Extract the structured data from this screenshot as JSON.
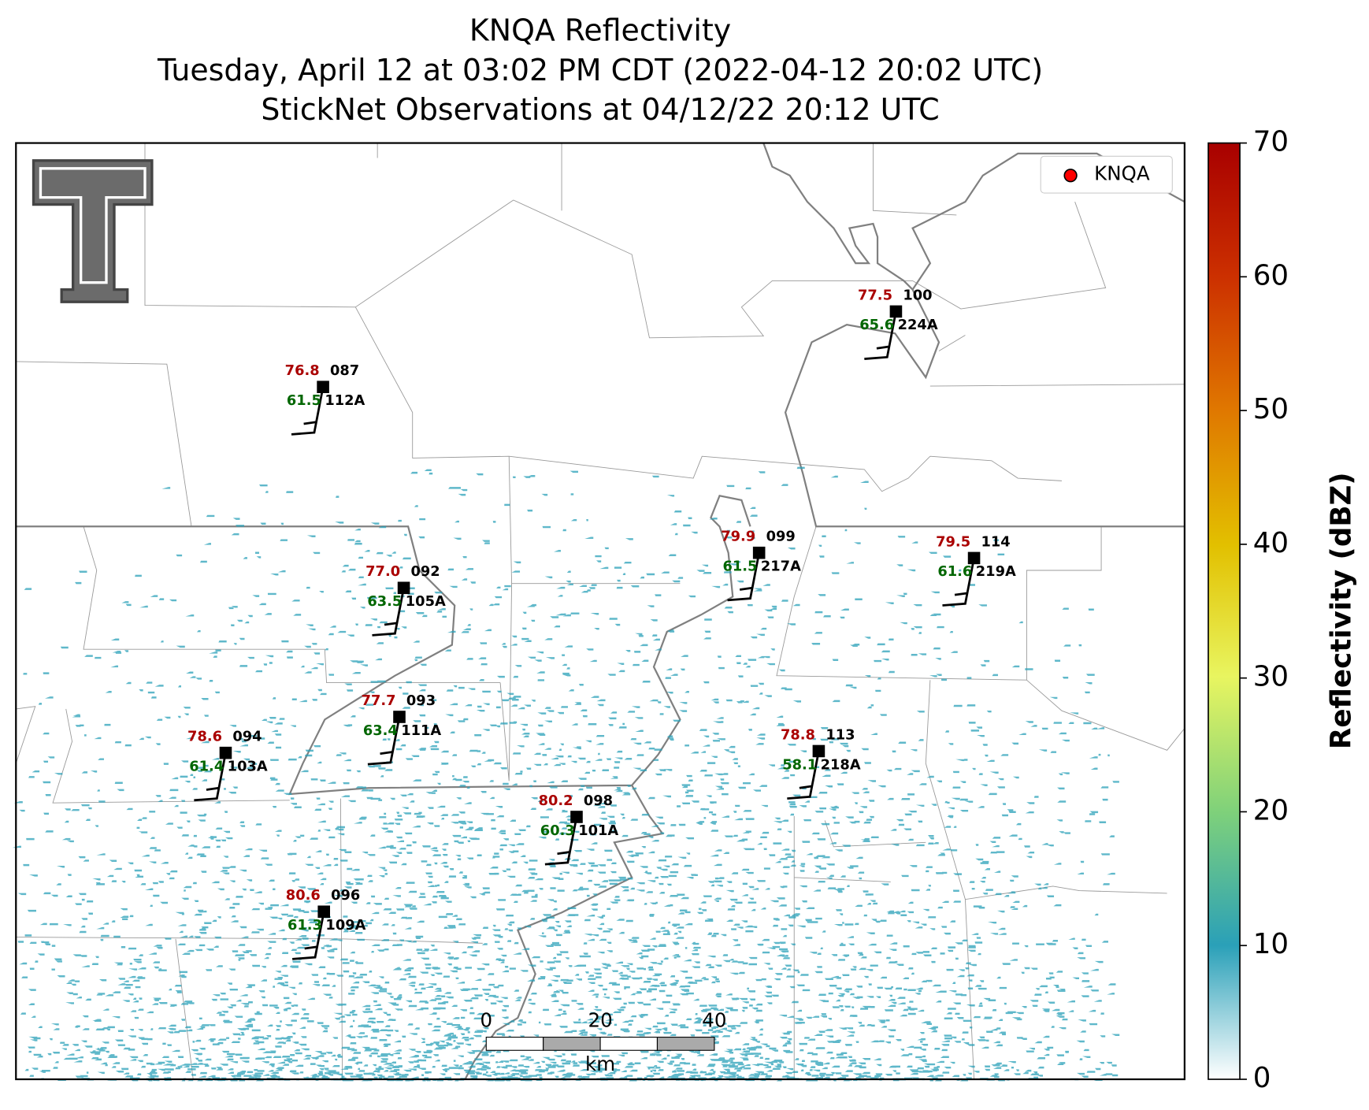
{
  "title": [
    "KNQA Reflectivity",
    "Tuesday, April 12 at 03:02 PM CDT (2022-04-12 20:02 UTC)",
    "StickNet Observations at 04/12/22 20:12 UTC"
  ],
  "legend": {
    "label": "KNQA",
    "color": "#ff0000"
  },
  "stations": [
    {
      "id": "112A",
      "temperature": "76.8",
      "dewpoint": "61.5",
      "pressure": "087"
    },
    {
      "id": "224A",
      "temperature": "77.5",
      "dewpoint": "65.6",
      "pressure": "100"
    },
    {
      "id": "105A",
      "temperature": "77.0",
      "dewpoint": "63.5",
      "pressure": "092"
    },
    {
      "id": "217A",
      "temperature": "79.9",
      "dewpoint": "61.5",
      "pressure": "099"
    },
    {
      "id": "219A",
      "temperature": "79.5",
      "dewpoint": "61.6",
      "pressure": "114"
    },
    {
      "id": "111A",
      "temperature": "77.7",
      "dewpoint": "63.4",
      "pressure": "093"
    },
    {
      "id": "103A",
      "temperature": "78.6",
      "dewpoint": "61.4",
      "pressure": "094"
    },
    {
      "id": "218A",
      "temperature": "78.8",
      "dewpoint": "58.1",
      "pressure": "113"
    },
    {
      "id": "101A",
      "temperature": "80.2",
      "dewpoint": "60.3",
      "pressure": "098"
    },
    {
      "id": "109A",
      "temperature": "80.6",
      "dewpoint": "61.3",
      "pressure": "096"
    }
  ],
  "colorbar": {
    "label": "Reflectivity (dBZ)",
    "lim": [
      0,
      70
    ],
    "ticks": [
      0,
      10,
      20,
      30,
      40,
      50,
      60,
      70
    ]
  },
  "scale_bar": {
    "lim": [
      0,
      40
    ],
    "ticks": [
      0,
      20,
      40
    ],
    "unit": "km"
  }
}
